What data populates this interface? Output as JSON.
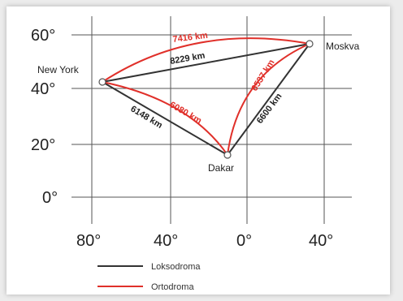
{
  "y_ticks": [
    "60°",
    "40°",
    "20°",
    "0°"
  ],
  "x_ticks": [
    "80°",
    "40°",
    "0°",
    "40°"
  ],
  "cities": [
    {
      "name": "New York"
    },
    {
      "name": "Moskva"
    },
    {
      "name": "Dakar"
    }
  ],
  "routes": {
    "loxodrome": {
      "ny_moskva": "8229 km",
      "ny_dakar": "6148 km",
      "dakar_moskva": "6600 km"
    },
    "orthodrome": {
      "ny_moskva": "7416 km",
      "ny_dakar": "6080 km",
      "dakar_moskva": "6537 km"
    }
  },
  "legend": [
    {
      "label": "Loksodroma",
      "color": "#333333"
    },
    {
      "label": "Ortodroma",
      "color": "#e0302a"
    }
  ],
  "colors": {
    "loxodrome": "#333333",
    "orthodrome": "#e0302a",
    "grid": "#555555"
  }
}
